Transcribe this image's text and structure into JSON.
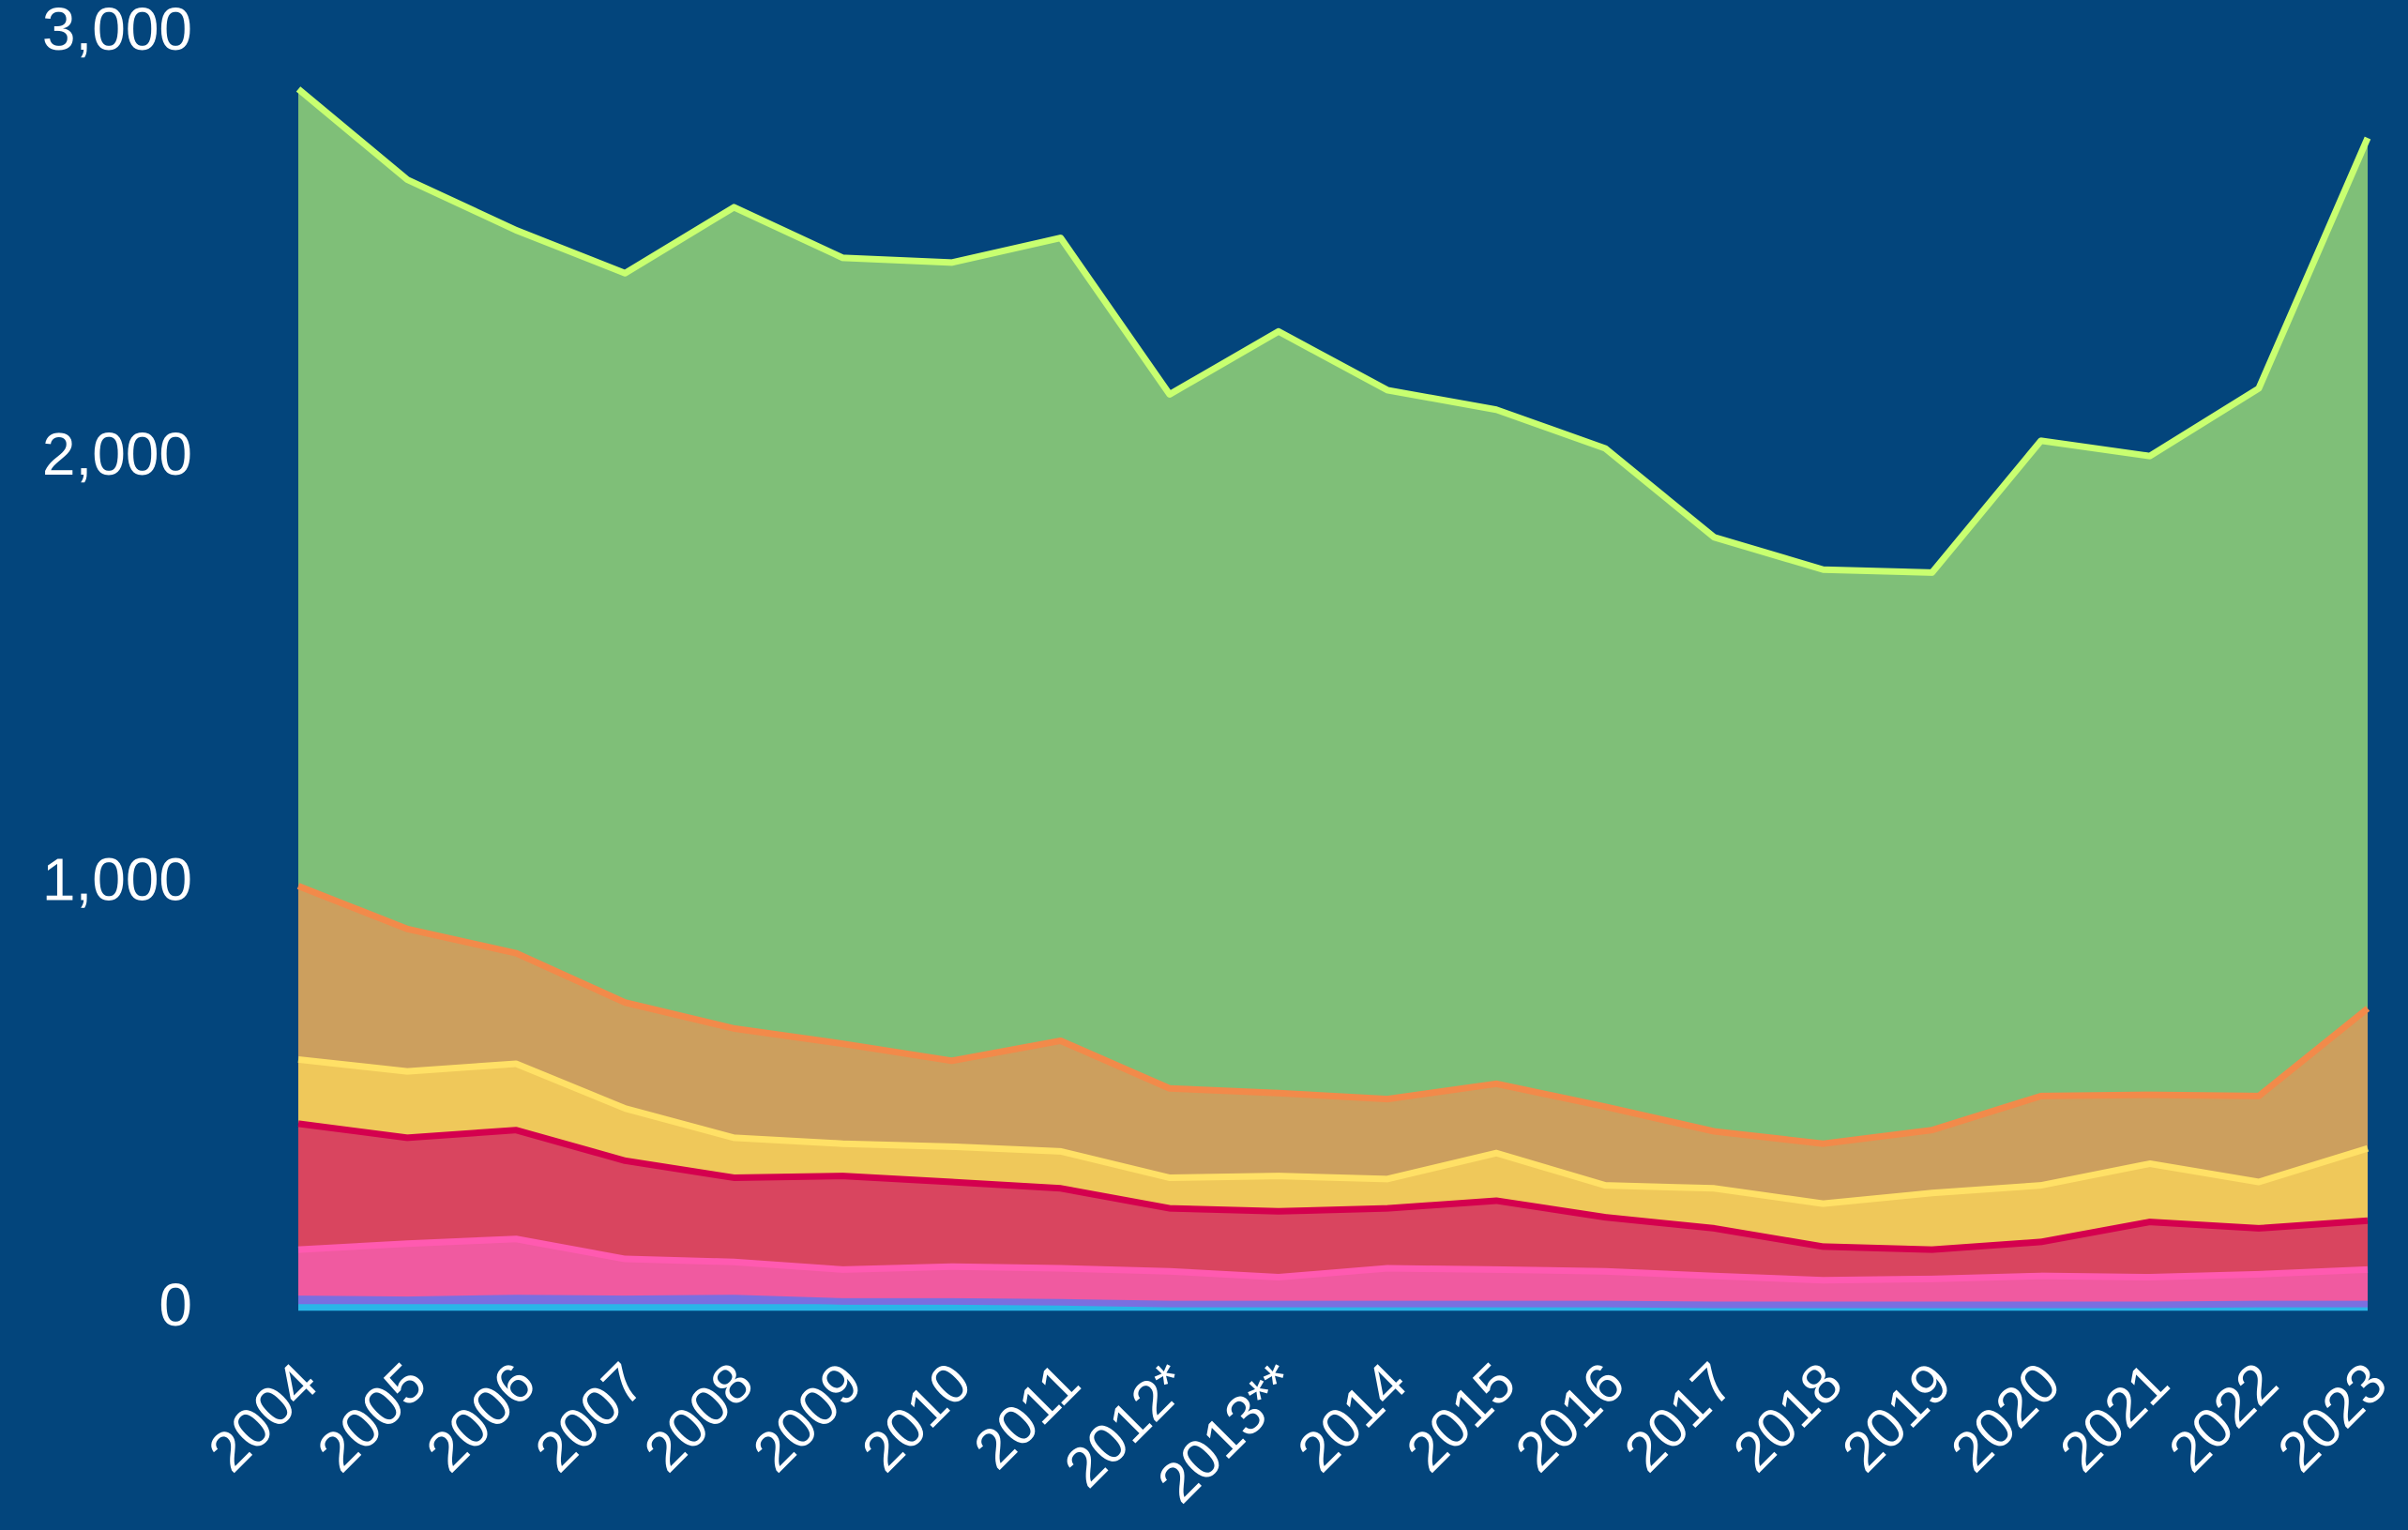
{
  "chart_data": {
    "type": "stacked-area",
    "categories": [
      "2004",
      "2005",
      "2006",
      "2007",
      "2008",
      "2009",
      "2010",
      "2011",
      "2012*",
      "2013**",
      "2014",
      "2015",
      "2016",
      "2017",
      "2018",
      "2019",
      "2020",
      "2021",
      "2022",
      "2023"
    ],
    "series": [
      {
        "color": "#29b6e8",
        "line_color": "#29b6e8",
        "values": [
          5,
          5,
          5,
          5,
          5,
          5,
          5,
          5,
          5,
          5,
          5,
          5,
          5,
          5,
          5,
          5,
          5,
          5,
          5,
          5
        ]
      },
      {
        "color": "#7a6fe0",
        "line_color": "#7a6fe0",
        "values": [
          20,
          18,
          22,
          20,
          22,
          14,
          14,
          12,
          8,
          8,
          8,
          8,
          8,
          6,
          6,
          6,
          6,
          6,
          8,
          8
        ]
      },
      {
        "color": "#f05aa0",
        "line_color": "#ff5ab0",
        "values": [
          116,
          132,
          139,
          94,
          85,
          75,
          82,
          80,
          77,
          63,
          84,
          81,
          77,
          68,
          58,
          61,
          68,
          65,
          70,
          81
        ]
      },
      {
        "color": "#d9455f",
        "line_color": "#d4004e",
        "values": [
          296,
          249,
          256,
          231,
          198,
          220,
          199,
          188,
          148,
          155,
          141,
          162,
          127,
          112,
          79,
          69,
          80,
          130,
          108,
          115
        ]
      },
      {
        "color": "#efc85a",
        "line_color": "#ffe066",
        "values": [
          151,
          156,
          156,
          123,
          94,
          76,
          83,
          87,
          72,
          83,
          69,
          112,
          75,
          94,
          101,
          133,
          133,
          137,
          109,
          170
        ]
      },
      {
        "color": "#cc9f5e",
        "line_color": "#f28a4a",
        "values": [
          408,
          335,
          260,
          249,
          257,
          235,
          202,
          260,
          210,
          195,
          188,
          163,
          185,
          134,
          141,
          148,
          210,
          162,
          202,
          329
        ]
      },
      {
        "color": "#7fbf78",
        "line_color": "#c8ff70",
        "values": [
          1874,
          1762,
          1700,
          1715,
          1931,
          1848,
          1877,
          1888,
          1632,
          1791,
          1667,
          1585,
          1548,
          1397,
          1350,
          1311,
          1541,
          1502,
          1664,
          2047
        ]
      }
    ],
    "ylim": [
      0,
      3000
    ],
    "yticks": [
      0,
      {
        "value": 1000,
        "label": "1,000"
      },
      {
        "value": 2000,
        "label": "2,000"
      },
      {
        "value": 3000,
        "label": "3,000"
      }
    ],
    "grid": false
  }
}
